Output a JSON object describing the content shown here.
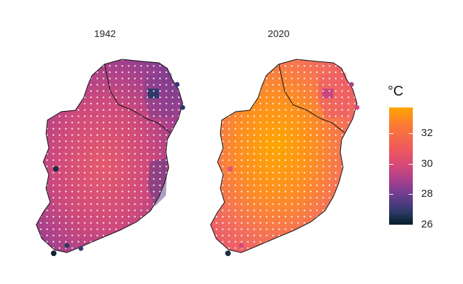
{
  "panels": [
    {
      "title": "1942"
    },
    {
      "title": "2020"
    }
  ],
  "legend": {
    "unit": "°C",
    "min": 26,
    "max": 33.7,
    "ticks": [
      "32",
      "30",
      "28",
      "26"
    ],
    "colors": [
      "#0b1d2c",
      "#2a3864",
      "#4e3b82",
      "#7a3d90",
      "#a8408b",
      "#d4487a",
      "#ef5a5c",
      "#fb7a35",
      "#ffa600"
    ]
  }
}
